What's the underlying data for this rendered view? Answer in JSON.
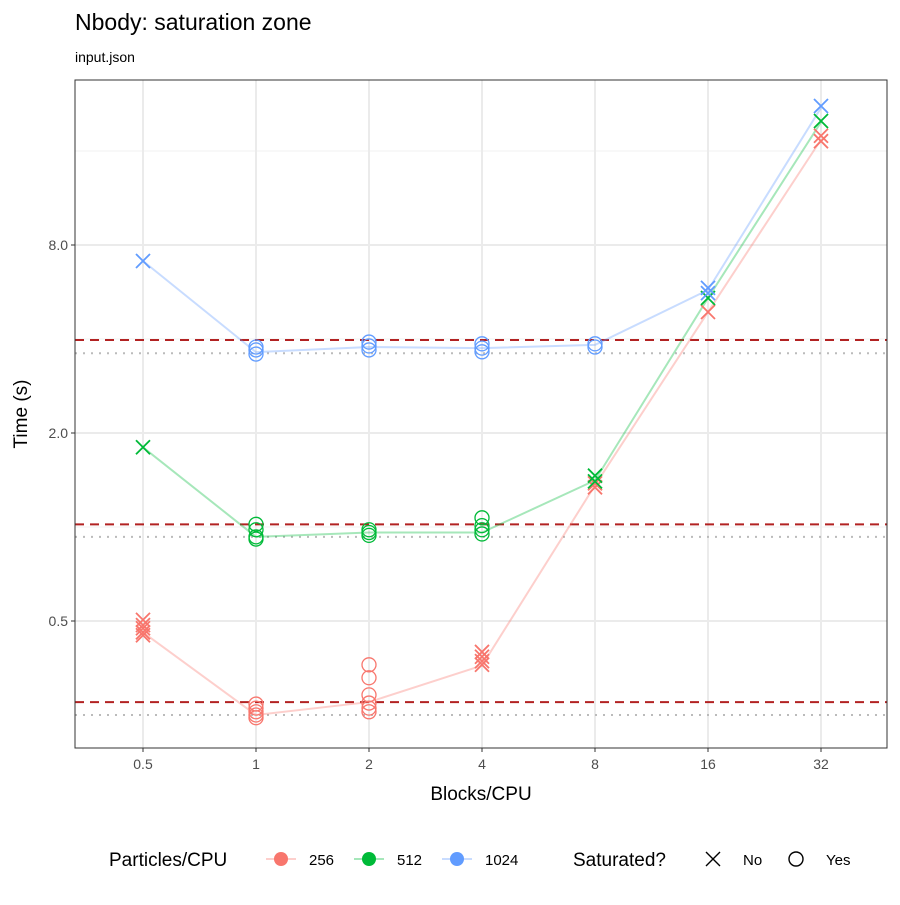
{
  "chart_data": {
    "type": "scatter",
    "title": "Nbody: saturation zone",
    "subtitle": "input.json",
    "xlabel": "Blocks/CPU",
    "ylabel": "Time (s)",
    "x_scale": "log2",
    "y_scale": "log2",
    "x_ticks": [
      0.5,
      1,
      2,
      4,
      8,
      16,
      32
    ],
    "x_tick_labels": [
      "0.5",
      "1",
      "2",
      "4",
      "8",
      "16",
      "32"
    ],
    "y_ticks": [
      0.5,
      2,
      8
    ],
    "y_tick_labels": [
      "0.5",
      "2.0",
      "8.0"
    ],
    "ylim": [
      0.196,
      27
    ],
    "grid": true,
    "legend_position": "bottom",
    "color_legend": {
      "title": "Particles/CPU"
    },
    "shape_legend": {
      "title": "Saturated?",
      "items": [
        {
          "label": "No",
          "shape": "cross"
        },
        {
          "label": "Yes",
          "shape": "circle"
        }
      ]
    },
    "series": [
      {
        "name": "256",
        "color": "#F8766D",
        "line": [
          [
            0.5,
            0.46
          ],
          [
            1,
            0.25
          ],
          [
            2,
            0.275
          ],
          [
            4,
            0.36
          ],
          [
            8,
            1.36
          ],
          [
            16,
            4.88
          ],
          [
            32,
            17.4
          ]
        ],
        "points": [
          [
            0.5,
            0.504,
            "No"
          ],
          [
            0.5,
            0.485,
            "No"
          ],
          [
            0.5,
            0.474,
            "No"
          ],
          [
            0.5,
            0.46,
            "No"
          ],
          [
            0.5,
            0.45,
            "No"
          ],
          [
            1,
            0.271,
            "Yes"
          ],
          [
            1,
            0.263,
            "Yes"
          ],
          [
            1,
            0.256,
            "Yes"
          ],
          [
            1,
            0.25,
            "Yes"
          ],
          [
            1,
            0.245,
            "Yes"
          ],
          [
            2,
            0.362,
            "Yes"
          ],
          [
            2,
            0.329,
            "Yes"
          ],
          [
            2,
            0.29,
            "Yes"
          ],
          [
            2,
            0.273,
            "Yes"
          ],
          [
            2,
            0.263,
            "Yes"
          ],
          [
            2,
            0.256,
            "Yes"
          ],
          [
            4,
            0.398,
            "No"
          ],
          [
            4,
            0.384,
            "No"
          ],
          [
            4,
            0.372,
            "No"
          ],
          [
            4,
            0.362,
            "No"
          ],
          [
            8,
            1.38,
            "No"
          ],
          [
            8,
            1.34,
            "No"
          ],
          [
            16,
            4.88,
            "No"
          ],
          [
            32,
            17.9,
            "No"
          ],
          [
            32,
            17.2,
            "No"
          ]
        ],
        "min": 0.25,
        "threshold": 0.275
      },
      {
        "name": "512",
        "color": "#00BA38",
        "line": [
          [
            0.5,
            1.8
          ],
          [
            1,
            0.93
          ],
          [
            2,
            0.96
          ],
          [
            4,
            0.96
          ],
          [
            8,
            1.41
          ],
          [
            16,
            5.41
          ],
          [
            32,
            19.8
          ]
        ],
        "points": [
          [
            0.5,
            1.8,
            "No"
          ],
          [
            1,
            1.02,
            "Yes"
          ],
          [
            1,
            0.98,
            "Yes"
          ],
          [
            1,
            0.93,
            "Yes"
          ],
          [
            1,
            0.915,
            "Yes"
          ],
          [
            2,
            0.98,
            "Yes"
          ],
          [
            2,
            0.96,
            "Yes"
          ],
          [
            2,
            0.94,
            "Yes"
          ],
          [
            4,
            1.07,
            "Yes"
          ],
          [
            4,
            1.01,
            "Yes"
          ],
          [
            4,
            0.98,
            "Yes"
          ],
          [
            4,
            0.95,
            "Yes"
          ],
          [
            8,
            1.46,
            "No"
          ],
          [
            8,
            1.4,
            "No"
          ],
          [
            16,
            5.41,
            "No"
          ],
          [
            32,
            19.96,
            "No"
          ]
        ],
        "min": 0.93,
        "threshold": 1.02
      },
      {
        "name": "1024",
        "color": "#619CFF",
        "line": [
          [
            0.5,
            7.11
          ],
          [
            1,
            3.63
          ],
          [
            2,
            3.77
          ],
          [
            4,
            3.74
          ],
          [
            8,
            3.83
          ],
          [
            16,
            5.74
          ],
          [
            32,
            22.0
          ]
        ],
        "points": [
          [
            0.5,
            7.11,
            "No"
          ],
          [
            1,
            3.77,
            "Yes"
          ],
          [
            1,
            3.69,
            "Yes"
          ],
          [
            1,
            3.58,
            "Yes"
          ],
          [
            2,
            3.91,
            "Yes"
          ],
          [
            2,
            3.8,
            "Yes"
          ],
          [
            2,
            3.69,
            "Yes"
          ],
          [
            4,
            3.86,
            "Yes"
          ],
          [
            4,
            3.74,
            "Yes"
          ],
          [
            4,
            3.64,
            "Yes"
          ],
          [
            8,
            3.86,
            "Yes"
          ],
          [
            8,
            3.77,
            "Yes"
          ],
          [
            16,
            5.83,
            "No"
          ],
          [
            16,
            5.61,
            "No"
          ],
          [
            32,
            22.3,
            "No"
          ]
        ],
        "min": 3.6,
        "threshold": 3.97
      }
    ],
    "threshold_line_color": "#B22222"
  }
}
